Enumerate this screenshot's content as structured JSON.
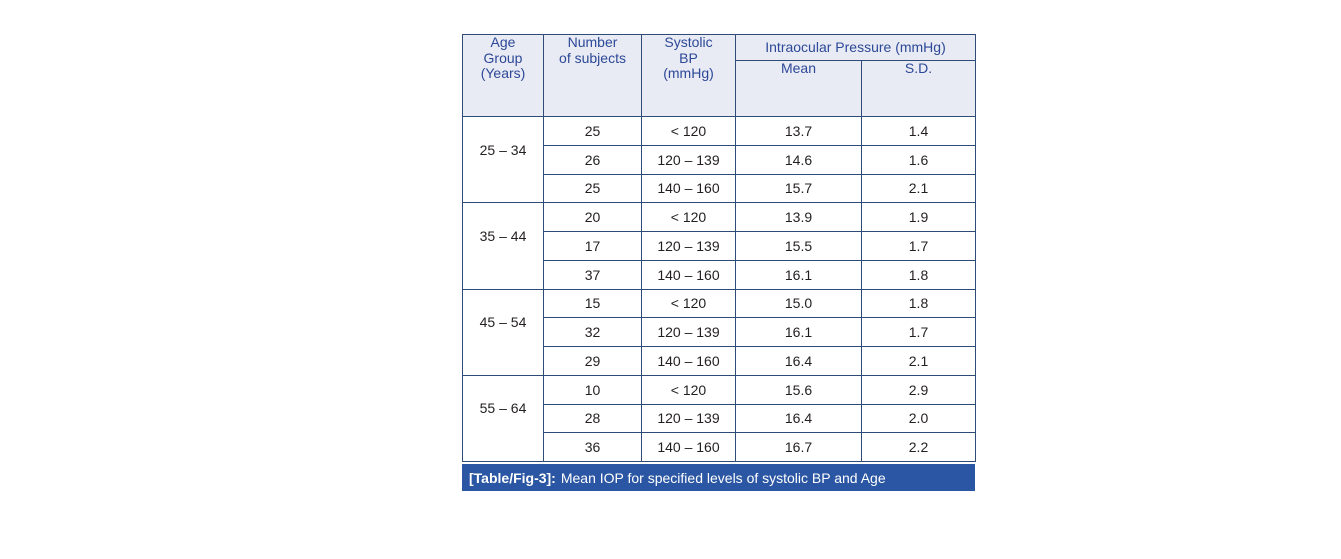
{
  "colors": {
    "page_background": "#ffffff",
    "table_border": "#2f4b78",
    "header_background": "#e9ebf4",
    "header_text": "#2c4897",
    "body_text": "#231f20",
    "caption_background": "#2b56a3",
    "caption_text": "#ffffff"
  },
  "table": {
    "header": {
      "age_group": "Age\nGroup\n(Years)",
      "subjects": "Number\nof subjects",
      "systolic_bp": "Systolic\nBP\n(mmHg)",
      "iop": "Intraocular Pressure (mmHg)",
      "mean": "Mean",
      "sd": "S.D."
    },
    "groups": [
      {
        "age": "25 – 34",
        "rows": [
          [
            "25",
            "< 120",
            "13.7",
            "1.4"
          ],
          [
            "26",
            "120 – 139",
            "14.6",
            "1.6"
          ],
          [
            "25",
            "140 – 160",
            "15.7",
            "2.1"
          ]
        ]
      },
      {
        "age": "35 – 44",
        "rows": [
          [
            "20",
            "< 120",
            "13.9",
            "1.9"
          ],
          [
            "17",
            "120 – 139",
            "15.5",
            "1.7"
          ],
          [
            "37",
            "140 – 160",
            "16.1",
            "1.8"
          ]
        ]
      },
      {
        "age": "45 – 54",
        "rows": [
          [
            "15",
            "< 120",
            "15.0",
            "1.8"
          ],
          [
            "32",
            "120 – 139",
            "16.1",
            "1.7"
          ],
          [
            "29",
            "140 – 160",
            "16.4",
            "2.1"
          ]
        ]
      },
      {
        "age": "55 – 64",
        "rows": [
          [
            "10",
            "< 120",
            "15.6",
            "2.9"
          ],
          [
            "28",
            "120 – 139",
            "16.4",
            "2.0"
          ],
          [
            "36",
            "140 – 160",
            "16.7",
            "2.2"
          ]
        ]
      }
    ],
    "caption": {
      "label": "[Table/Fig-3]:",
      "text": "Mean IOP for specified levels of systolic BP and Age"
    }
  },
  "chart_data": {
    "type": "table",
    "title": "[Table/Fig-3]: Mean IOP for specified levels of systolic BP and Age",
    "columns": [
      "Age Group (Years)",
      "Number of subjects",
      "Systolic BP (mmHg)",
      "Intraocular Pressure (mmHg) — Mean",
      "Intraocular Pressure (mmHg) — S.D."
    ],
    "rows": [
      [
        "25 – 34",
        "25",
        "< 120",
        "13.7",
        "1.4"
      ],
      [
        "25 – 34",
        "26",
        "120 – 139",
        "14.6",
        "1.6"
      ],
      [
        "25 – 34",
        "25",
        "140 – 160",
        "15.7",
        "2.1"
      ],
      [
        "35 – 44",
        "20",
        "< 120",
        "13.9",
        "1.9"
      ],
      [
        "35 – 44",
        "17",
        "120 – 139",
        "15.5",
        "1.7"
      ],
      [
        "35 – 44",
        "37",
        "140 – 160",
        "16.1",
        "1.8"
      ],
      [
        "45 – 54",
        "15",
        "< 120",
        "15.0",
        "1.8"
      ],
      [
        "45 – 54",
        "32",
        "120 – 139",
        "16.1",
        "1.7"
      ],
      [
        "45 – 54",
        "29",
        "140 – 160",
        "16.4",
        "2.1"
      ],
      [
        "55 – 64",
        "10",
        "< 120",
        "15.6",
        "2.9"
      ],
      [
        "55 – 64",
        "28",
        "120 – 139",
        "16.4",
        "2.0"
      ],
      [
        "55 – 64",
        "36",
        "140 – 160",
        "16.7",
        "2.2"
      ]
    ]
  }
}
